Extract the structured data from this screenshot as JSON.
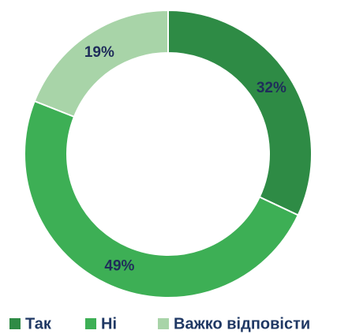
{
  "chart_data": {
    "type": "pie",
    "categories": [
      "Так",
      "Ні",
      "Важко відповісти"
    ],
    "values": [
      32,
      49,
      19
    ],
    "value_labels": [
      "32%",
      "49%",
      "19%"
    ],
    "colors": [
      "#2e8b45",
      "#3daf55",
      "#a8d4a8"
    ],
    "legend": "bottom"
  }
}
